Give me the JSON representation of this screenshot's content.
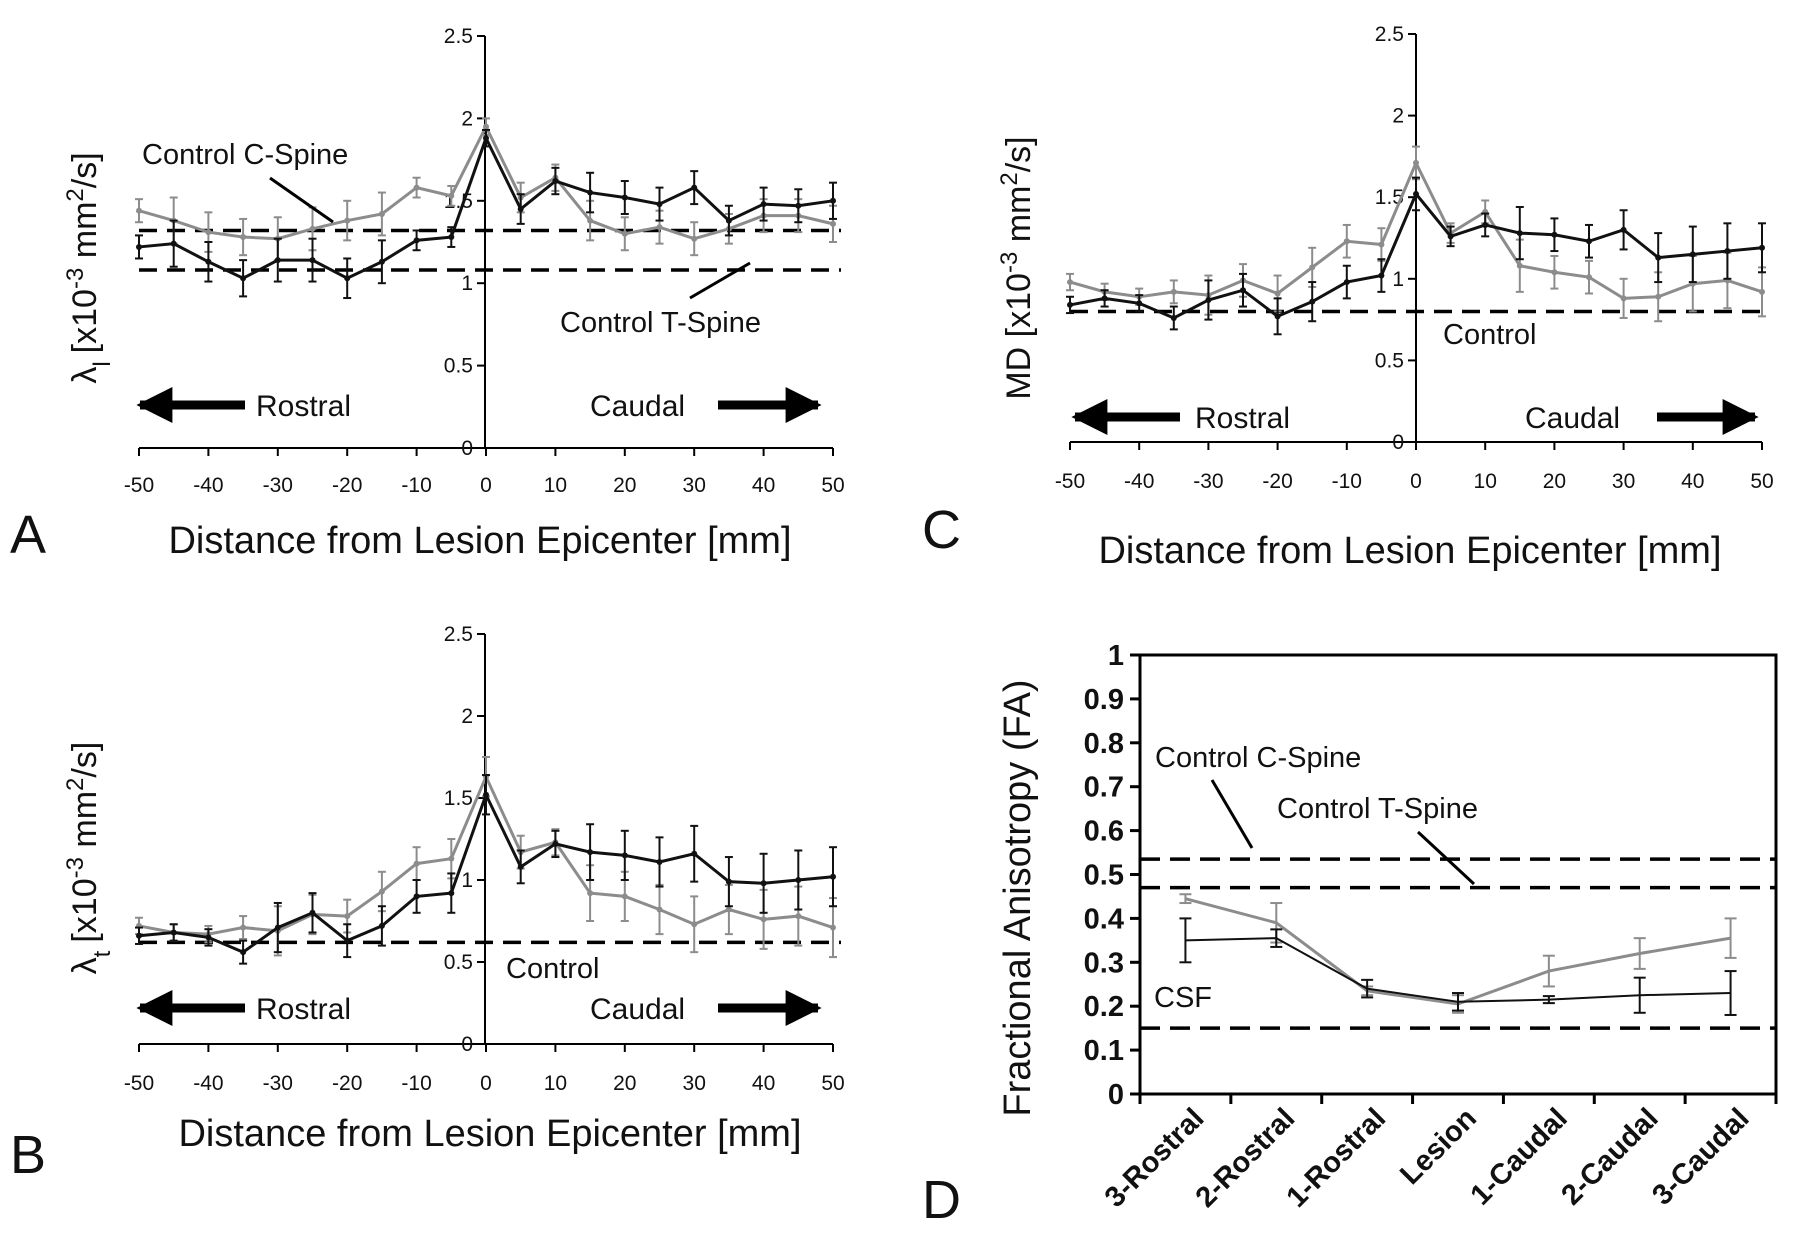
{
  "figure": {
    "panels": [
      {
        "panel_letter": "A",
        "ylabel": "λl [x10-3 mm2/s]",
        "ylabel_main": "λ",
        "ylabel_sub": "l",
        "ylabel_mid": "[x10",
        "ylabel_sup1": "-3",
        "ylabel_mm": " mm",
        "ylabel_sup2": "2",
        "ylabel_tail": "/s]",
        "rostral_label": "Rostral",
        "caudal_label": "Caudal",
        "annotations": [
          "Control C-Spine",
          "Control T-Spine"
        ]
      },
      {
        "panel_letter": "B",
        "ylabel": "λt [x10-3 mm2/s]",
        "ylabel_main": "λ",
        "ylabel_sub": "t",
        "ylabel_mid": "[x10",
        "ylabel_sup1": "-3",
        "ylabel_mm": " mm",
        "ylabel_sup2": "2",
        "ylabel_tail": "/s]",
        "rostral_label": "Rostral",
        "caudal_label": "Caudal",
        "annotations": [
          "Control"
        ]
      },
      {
        "panel_letter": "C",
        "ylabel": "MD [x10-3 mm2/s]",
        "ylabel_main": "MD ",
        "ylabel_sub": "",
        "ylabel_mid": "[x10",
        "ylabel_sup1": "-3",
        "ylabel_mm": " mm",
        "ylabel_sup2": "2",
        "ylabel_tail": "/s]",
        "rostral_label": "Rostral",
        "caudal_label": "Caudal",
        "annotations": [
          "Control"
        ]
      },
      {
        "panel_letter": "D",
        "ylabel": "Fractional Anisotropy (FA)",
        "annotations": [
          "Control C-Spine",
          "Control T-Spine",
          "CSF"
        ]
      }
    ]
  },
  "colors": {
    "series_dark": "#111111",
    "series_gray": "#8c8c8c",
    "axis": "#000000"
  },
  "chart_data": [
    {
      "type": "line",
      "panel": "A",
      "xlabel": "Distance from Lesion Epicenter [mm]",
      "ylabel": "λl [x10-3 mm2/s]",
      "xlim": [
        -50,
        50
      ],
      "ylim": [
        0,
        2.5
      ],
      "xticks": [
        -50,
        -40,
        -30,
        -20,
        -10,
        0,
        10,
        20,
        30,
        40,
        50
      ],
      "yticks": [
        0,
        0.5,
        1,
        1.5,
        2,
        2.5
      ],
      "ytick_labels": [
        "0",
        "0.5",
        "1",
        "1.5",
        "2",
        "2.5"
      ],
      "x": [
        -50,
        -45,
        -40,
        -35,
        -30,
        -25,
        -20,
        -15,
        -10,
        -5,
        0,
        5,
        10,
        15,
        20,
        25,
        30,
        35,
        40,
        45,
        50
      ],
      "series": [
        {
          "color": "#111111",
          "values": [
            1.22,
            1.24,
            1.13,
            1.03,
            1.14,
            1.14,
            1.03,
            1.13,
            1.26,
            1.28,
            1.88,
            1.45,
            1.62,
            1.55,
            1.52,
            1.48,
            1.58,
            1.38,
            1.48,
            1.47,
            1.5
          ],
          "errors": [
            0.07,
            0.14,
            0.12,
            0.11,
            0.13,
            0.13,
            0.12,
            0.13,
            0.06,
            0.06,
            0.05,
            0.09,
            0.08,
            0.12,
            0.1,
            0.1,
            0.1,
            0.09,
            0.1,
            0.1,
            0.11
          ]
        },
        {
          "color": "#8c8c8c",
          "values": [
            1.44,
            1.38,
            1.31,
            1.28,
            1.27,
            1.33,
            1.38,
            1.42,
            1.58,
            1.53,
            1.95,
            1.52,
            1.64,
            1.38,
            1.3,
            1.34,
            1.27,
            1.33,
            1.41,
            1.41,
            1.36
          ]
        }
      ],
      "reference_lines": [
        {
          "label": "Control C-Spine",
          "y": 1.32
        },
        {
          "label": "Control T-Spine",
          "y": 1.08
        }
      ]
    },
    {
      "type": "line",
      "panel": "B",
      "xlabel": "Distance from Lesion Epicenter [mm]",
      "ylabel": "λt [x10-3 mm2/s]",
      "xlim": [
        -50,
        50
      ],
      "ylim": [
        0,
        2.5
      ],
      "xticks": [
        -50,
        -40,
        -30,
        -20,
        -10,
        0,
        10,
        20,
        30,
        40,
        50
      ],
      "yticks": [
        0,
        0.5,
        1,
        1.5,
        2,
        2.5
      ],
      "ytick_labels": [
        "0",
        "0.5",
        "1",
        "1.5",
        "2",
        "2.5"
      ],
      "x": [
        -50,
        -45,
        -40,
        -35,
        -30,
        -25,
        -20,
        -15,
        -10,
        -5,
        0,
        5,
        10,
        15,
        20,
        25,
        30,
        35,
        40,
        45,
        50
      ],
      "series": [
        {
          "color": "#111111",
          "values": [
            0.66,
            0.68,
            0.65,
            0.56,
            0.71,
            0.8,
            0.63,
            0.72,
            0.9,
            0.92,
            1.52,
            1.08,
            1.22,
            1.17,
            1.15,
            1.11,
            1.16,
            0.99,
            0.98,
            1.0,
            1.02
          ],
          "errors": [
            0.05,
            0.05,
            0.05,
            0.07,
            0.15,
            0.12,
            0.1,
            0.12,
            0.1,
            0.12,
            0.12,
            0.1,
            0.08,
            0.17,
            0.15,
            0.15,
            0.17,
            0.15,
            0.18,
            0.18,
            0.18
          ]
        },
        {
          "color": "#8c8c8c",
          "values": [
            0.72,
            0.68,
            0.67,
            0.71,
            0.69,
            0.79,
            0.78,
            0.93,
            1.1,
            1.13,
            1.63,
            1.17,
            1.23,
            0.92,
            0.9,
            0.82,
            0.73,
            0.82,
            0.76,
            0.78,
            0.71
          ]
        }
      ],
      "reference_lines": [
        {
          "label": "Control",
          "y": 0.62
        }
      ]
    },
    {
      "type": "line",
      "panel": "C",
      "xlabel": "Distance from Lesion Epicenter [mm]",
      "ylabel": "MD [x10-3 mm2/s]",
      "xlim": [
        -50,
        50
      ],
      "ylim": [
        0,
        2.5
      ],
      "xticks": [
        -50,
        -40,
        -30,
        -20,
        -10,
        0,
        10,
        20,
        30,
        40,
        50
      ],
      "yticks": [
        0,
        0.5,
        1,
        1.5,
        2,
        2.5
      ],
      "ytick_labels": [
        "0",
        "0.5",
        "1",
        "1.5",
        "2",
        "2.5"
      ],
      "x": [
        -50,
        -45,
        -40,
        -35,
        -30,
        -25,
        -20,
        -15,
        -10,
        -5,
        0,
        5,
        10,
        15,
        20,
        25,
        30,
        35,
        40,
        45,
        50
      ],
      "series": [
        {
          "color": "#111111",
          "values": [
            0.84,
            0.88,
            0.85,
            0.76,
            0.87,
            0.93,
            0.77,
            0.86,
            0.98,
            1.02,
            1.52,
            1.26,
            1.33,
            1.28,
            1.27,
            1.23,
            1.3,
            1.13,
            1.15,
            1.17,
            1.19
          ],
          "errors": [
            0.05,
            0.05,
            0.05,
            0.07,
            0.12,
            0.1,
            0.11,
            0.12,
            0.1,
            0.1,
            0.1,
            0.06,
            0.07,
            0.16,
            0.1,
            0.1,
            0.12,
            0.15,
            0.17,
            0.17,
            0.15
          ]
        },
        {
          "color": "#8c8c8c",
          "values": [
            0.98,
            0.92,
            0.89,
            0.92,
            0.9,
            0.99,
            0.91,
            1.07,
            1.23,
            1.21,
            1.71,
            1.28,
            1.41,
            1.08,
            1.04,
            1.01,
            0.88,
            0.89,
            0.97,
            0.99,
            0.92
          ]
        }
      ],
      "reference_lines": [
        {
          "label": "Control",
          "y": 0.8
        }
      ]
    },
    {
      "type": "line",
      "panel": "D",
      "xlabel": "",
      "ylabel": "Fractional Anisotropy (FA)",
      "ylim": [
        0,
        1
      ],
      "yticks": [
        0,
        0.1,
        0.2,
        0.3,
        0.4,
        0.5,
        0.6,
        0.7,
        0.8,
        0.9,
        1
      ],
      "ytick_labels": [
        "0",
        "0.1",
        "0.2",
        "0.3",
        "0.4",
        "0.5",
        "0.6",
        "0.7",
        "0.8",
        "0.9",
        "1"
      ],
      "categories": [
        "3-Rostral",
        "2-Rostral",
        "1-Rostral",
        "Lesion",
        "1-Caudal",
        "2-Caudal",
        "3-Caudal"
      ],
      "series": [
        {
          "color": "#111111",
          "values": [
            0.35,
            0.355,
            0.24,
            0.21,
            0.215,
            0.225,
            0.23
          ],
          "errors": [
            0.05,
            0.02,
            0.02,
            0.02,
            0.008,
            0.04,
            0.05
          ]
        },
        {
          "color": "#8c8c8c",
          "values": [
            0.445,
            0.39,
            0.235,
            0.205,
            0.28,
            0.32,
            0.355
          ],
          "errors": [
            0.01,
            0.045,
            0.01,
            0.02,
            0.035,
            0.035,
            0.045
          ]
        }
      ],
      "reference_lines": [
        {
          "label": "Control C-Spine",
          "y": 0.535
        },
        {
          "label": "Control T-Spine",
          "y": 0.47
        },
        {
          "label": "CSF",
          "y": 0.15
        }
      ]
    }
  ]
}
